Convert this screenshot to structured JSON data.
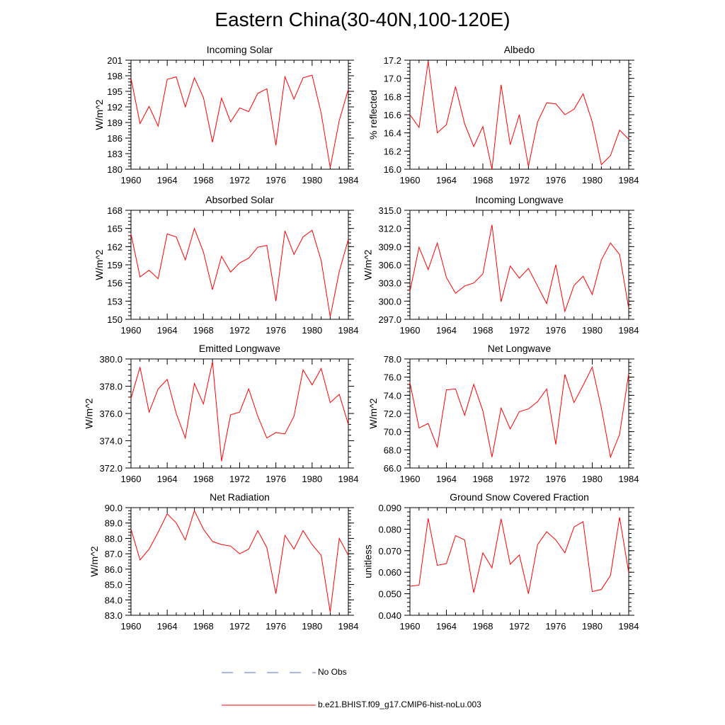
{
  "title": "Eastern China(30-40N,100-120E)",
  "years": [
    1960,
    1961,
    1962,
    1963,
    1964,
    1965,
    1966,
    1967,
    1968,
    1969,
    1970,
    1971,
    1972,
    1973,
    1974,
    1975,
    1976,
    1977,
    1978,
    1979,
    1980,
    1981,
    1982,
    1983,
    1984
  ],
  "legend": {
    "obs_label": "No Obs",
    "obs_color": "#5a6ed0",
    "model_label": "b.e21.BHIST.f09_g17.CMIP6-hist-noLu.003",
    "model_color": "#ff0000"
  },
  "chart_data": [
    {
      "type": "line",
      "title": "Incoming Solar",
      "ylabel": "W/m^2",
      "xlim": [
        1960,
        1984
      ],
      "ylim": [
        180,
        201
      ],
      "yticks": [
        "180",
        "183",
        "186",
        "189",
        "192",
        "195",
        "198",
        "201"
      ],
      "xticks": [
        "1960",
        "1964",
        "1968",
        "1972",
        "1976",
        "1980",
        "1984"
      ],
      "series": [
        {
          "name": "b.e21.BHIST.f09_g17.CMIP6-hist-noLu.003",
          "values": [
            197.5,
            188.8,
            192.1,
            188.3,
            197.3,
            197.8,
            192.0,
            197.6,
            193.8,
            185.2,
            193.7,
            189.1,
            191.8,
            191.1,
            194.6,
            195.5,
            184.6,
            197.8,
            193.5,
            197.6,
            198.1,
            190.8,
            180.3,
            189.4,
            195.4
          ]
        }
      ]
    },
    {
      "type": "line",
      "title": "Albedo",
      "ylabel": "% reflected",
      "xlim": [
        1960,
        1984
      ],
      "ylim": [
        16.0,
        17.2
      ],
      "yticks": [
        "16.0",
        "16.2",
        "16.4",
        "16.6",
        "16.8",
        "17.0",
        "17.2"
      ],
      "xticks": [
        "1960",
        "1964",
        "1968",
        "1972",
        "1976",
        "1980",
        "1984"
      ],
      "series": [
        {
          "name": "b.e21.BHIST.f09_g17.CMIP6-hist-noLu.003",
          "values": [
            16.6,
            16.46,
            17.19,
            16.4,
            16.49,
            16.91,
            16.5,
            16.25,
            16.47,
            16.0,
            16.93,
            16.27,
            16.6,
            16.03,
            16.52,
            16.73,
            16.72,
            16.6,
            16.66,
            16.83,
            16.52,
            16.05,
            16.15,
            16.43,
            16.33
          ]
        }
      ]
    },
    {
      "type": "line",
      "title": "Absorbed Solar",
      "ylabel": "W/m^2",
      "xlim": [
        1960,
        1984
      ],
      "ylim": [
        150,
        168
      ],
      "yticks": [
        "150",
        "153",
        "156",
        "159",
        "162",
        "165",
        "168"
      ],
      "xticks": [
        "1960",
        "1964",
        "1968",
        "1972",
        "1976",
        "1980",
        "1984"
      ],
      "series": [
        {
          "name": "b.e21.BHIST.f09_g17.CMIP6-hist-noLu.003",
          "values": [
            164.1,
            157.0,
            158.1,
            156.7,
            164.1,
            163.6,
            159.8,
            165.0,
            161.1,
            154.9,
            160.4,
            157.8,
            159.3,
            160.1,
            161.9,
            162.2,
            153.0,
            164.6,
            160.7,
            163.6,
            164.7,
            159.7,
            150.4,
            157.9,
            163.2
          ]
        }
      ]
    },
    {
      "type": "line",
      "title": "Incoming Longwave",
      "ylabel": "W/m^2",
      "xlim": [
        1960,
        1984
      ],
      "ylim": [
        297.0,
        315.0
      ],
      "yticks": [
        "297.0",
        "300.0",
        "303.0",
        "306.0",
        "309.0",
        "312.0",
        "315.0"
      ],
      "xticks": [
        "1960",
        "1964",
        "1968",
        "1972",
        "1976",
        "1980",
        "1984"
      ],
      "series": [
        {
          "name": "b.e21.BHIST.f09_g17.CMIP6-hist-noLu.003",
          "values": [
            301.6,
            308.9,
            305.2,
            309.6,
            303.9,
            301.3,
            302.5,
            303.0,
            304.5,
            312.6,
            299.9,
            305.8,
            303.8,
            305.4,
            302.5,
            299.6,
            306.0,
            298.3,
            302.6,
            304.1,
            301.1,
            306.8,
            309.6,
            307.7,
            298.8
          ]
        }
      ]
    },
    {
      "type": "line",
      "title": "Emitted Longwave",
      "ylabel": "W/m^2",
      "xlim": [
        1960,
        1984
      ],
      "ylim": [
        372.0,
        380.0
      ],
      "yticks": [
        "372.0",
        "374.0",
        "376.0",
        "378.0",
        "380.0"
      ],
      "xticks": [
        "1960",
        "1964",
        "1968",
        "1972",
        "1976",
        "1980",
        "1984"
      ],
      "series": [
        {
          "name": "b.e21.BHIST.f09_g17.CMIP6-hist-noLu.003",
          "values": [
            377.1,
            379.4,
            376.1,
            377.8,
            378.5,
            376.0,
            374.2,
            378.2,
            376.7,
            379.8,
            372.5,
            375.9,
            376.1,
            377.8,
            375.8,
            374.2,
            374.6,
            374.5,
            375.8,
            379.2,
            378.1,
            379.3,
            376.8,
            377.4,
            375.2
          ]
        }
      ]
    },
    {
      "type": "line",
      "title": "Net Longwave",
      "ylabel": "W/m^2",
      "xlim": [
        1960,
        1984
      ],
      "ylim": [
        66.0,
        78.0
      ],
      "yticks": [
        "66.0",
        "68.0",
        "70.0",
        "72.0",
        "74.0",
        "76.0",
        "78.0"
      ],
      "xticks": [
        "1960",
        "1964",
        "1968",
        "1972",
        "1976",
        "1980",
        "1984"
      ],
      "series": [
        {
          "name": "b.e21.BHIST.f09_g17.CMIP6-hist-noLu.003",
          "values": [
            75.4,
            70.4,
            70.9,
            68.3,
            74.6,
            74.7,
            71.8,
            75.2,
            72.3,
            67.2,
            72.6,
            70.3,
            72.2,
            72.5,
            73.3,
            74.7,
            68.6,
            76.3,
            73.2,
            75.1,
            77.1,
            72.6,
            67.2,
            69.7,
            76.4
          ]
        }
      ]
    },
    {
      "type": "line",
      "title": "Net Radiation",
      "ylabel": "W/m^2",
      "xlim": [
        1960,
        1984
      ],
      "ylim": [
        83.0,
        90.0
      ],
      "yticks": [
        "83.0",
        "84.0",
        "85.0",
        "86.0",
        "87.0",
        "88.0",
        "89.0",
        "90.0"
      ],
      "xticks": [
        "1960",
        "1964",
        "1968",
        "1972",
        "1976",
        "1980",
        "1984"
      ],
      "series": [
        {
          "name": "b.e21.BHIST.f09_g17.CMIP6-hist-noLu.003",
          "values": [
            88.6,
            86.6,
            87.3,
            88.4,
            89.6,
            89.0,
            87.9,
            89.8,
            88.6,
            87.8,
            87.6,
            87.5,
            87.0,
            87.3,
            88.5,
            87.4,
            84.4,
            88.2,
            87.3,
            88.5,
            87.6,
            86.9,
            83.2,
            88.0,
            86.9
          ]
        }
      ]
    },
    {
      "type": "line",
      "title": "Ground Snow Covered Fraction",
      "ylabel": "unitless",
      "xlim": [
        1960,
        1984
      ],
      "ylim": [
        0.04,
        0.09
      ],
      "yticks": [
        "0.040",
        "0.050",
        "0.060",
        "0.070",
        "0.080",
        "0.090"
      ],
      "xticks": [
        "1960",
        "1964",
        "1968",
        "1972",
        "1976",
        "1980",
        "1984"
      ],
      "series": [
        {
          "name": "b.e21.BHIST.f09_g17.CMIP6-hist-noLu.003",
          "values": [
            0.0535,
            0.054,
            0.085,
            0.0632,
            0.064,
            0.077,
            0.075,
            0.0505,
            0.069,
            0.062,
            0.0848,
            0.0637,
            0.068,
            0.05,
            0.0728,
            0.0788,
            0.075,
            0.069,
            0.081,
            0.0835,
            0.051,
            0.052,
            0.0585,
            0.0855,
            0.0598
          ]
        }
      ]
    }
  ]
}
